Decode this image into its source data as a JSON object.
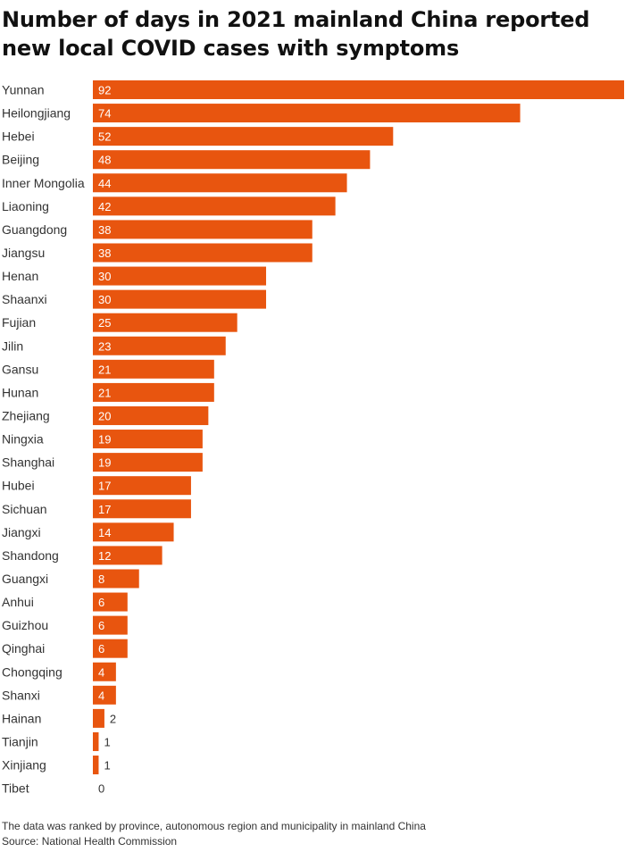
{
  "title": "Number of days in 2021 mainland China reported new local COVID cases with symptoms",
  "footnote": "The data was ranked by province, autonomous region and municipality in mainland China",
  "source": "Source: National Health Commission",
  "colors": {
    "bar": "#e8550f",
    "label": "#333333",
    "value_inside": "#ffffff"
  },
  "chart_data": {
    "type": "bar",
    "orientation": "horizontal",
    "categories": [
      "Yunnan",
      "Heilongjiang",
      "Hebei",
      "Beijing",
      "Inner Mongolia",
      "Liaoning",
      "Guangdong",
      "Jiangsu",
      "Henan",
      "Shaanxi",
      "Fujian",
      "Jilin",
      "Gansu",
      "Hunan",
      "Zhejiang",
      "Ningxia",
      "Shanghai",
      "Hubei",
      "Sichuan",
      "Jiangxi",
      "Shandong",
      "Guangxi",
      "Anhui",
      "Guizhou",
      "Qinghai",
      "Chongqing",
      "Shanxi",
      "Hainan",
      "Tianjin",
      "Xinjiang",
      "Tibet"
    ],
    "values": [
      92,
      74,
      52,
      48,
      44,
      42,
      38,
      38,
      30,
      30,
      25,
      23,
      21,
      21,
      20,
      19,
      19,
      17,
      17,
      14,
      12,
      8,
      6,
      6,
      6,
      4,
      4,
      2,
      1,
      1,
      0
    ],
    "xlim": [
      0,
      92
    ],
    "grid": false,
    "legend": "none",
    "data_labels": true
  }
}
